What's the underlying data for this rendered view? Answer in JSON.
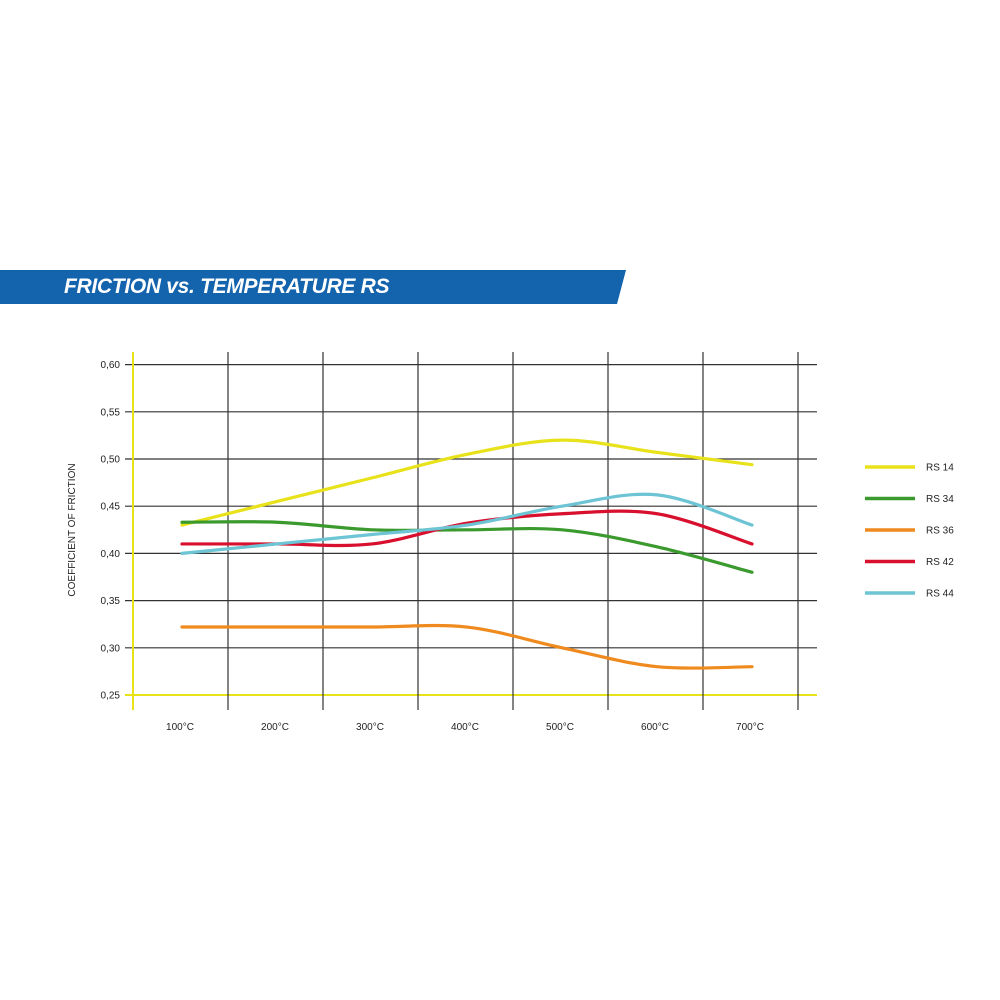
{
  "chart_data": {
    "type": "line",
    "title": "FRICTION vs. TEMPERATURE RS",
    "xlabel": "",
    "ylabel": "COEFFICIENT OF FRICTION",
    "categories": [
      "100°C",
      "200°C",
      "300°C",
      "400°C",
      "500°C",
      "600°C",
      "700°C"
    ],
    "yticks": [
      "0,25",
      "0,30",
      "0,35",
      "0,40",
      "0,45",
      "0,50",
      "0,55",
      "0,60"
    ],
    "ylim": [
      0.25,
      0.6
    ],
    "grid": true,
    "legend_position": "right",
    "banner_color": "#1463ad",
    "axis_color": "#e8e21a",
    "series": [
      {
        "name": "RS 14",
        "color": "#e8e21a",
        "values": [
          0.43,
          0.455,
          0.48,
          0.505,
          0.52,
          0.507,
          0.494
        ]
      },
      {
        "name": "RS 34",
        "color": "#3a9a2e",
        "values": [
          0.433,
          0.433,
          0.425,
          0.425,
          0.425,
          0.407,
          0.38
        ]
      },
      {
        "name": "RS 36",
        "color": "#ef8a1f",
        "values": [
          0.322,
          0.322,
          0.322,
          0.322,
          0.3,
          0.28,
          0.28
        ]
      },
      {
        "name": "RS 42",
        "color": "#d8102e",
        "values": [
          0.41,
          0.41,
          0.41,
          0.432,
          0.442,
          0.442,
          0.41
        ]
      },
      {
        "name": "RS 44",
        "color": "#6cc4d4",
        "values": [
          0.4,
          0.41,
          0.42,
          0.43,
          0.45,
          0.462,
          0.43
        ]
      }
    ]
  }
}
